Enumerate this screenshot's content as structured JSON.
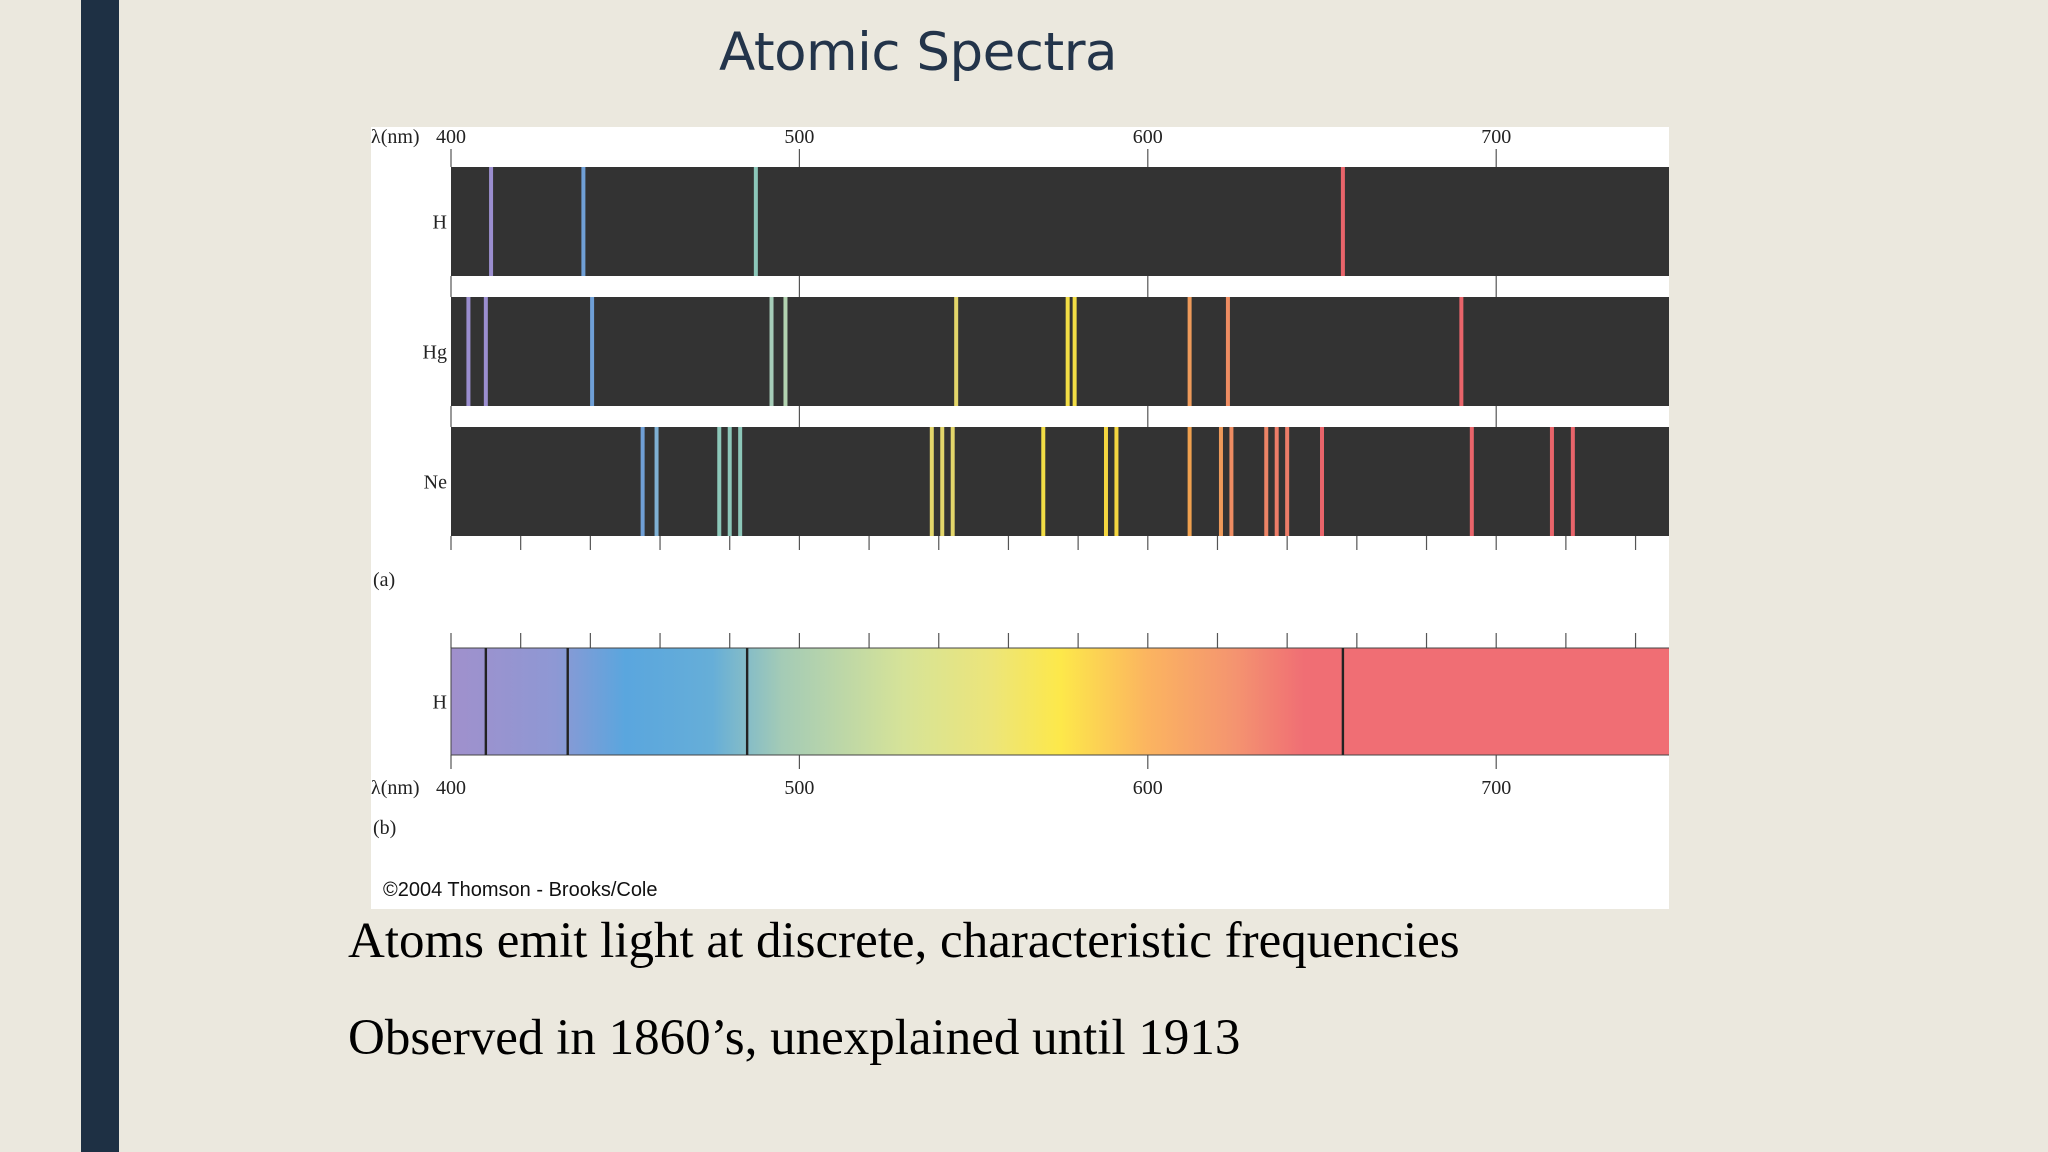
{
  "slide": {
    "title": "Atomic Spectra",
    "bullets": [
      "Atoms emit light at discrete, characteristic frequencies",
      "Observed in 1860’s, unexplained until 1913"
    ]
  },
  "figure": {
    "axis_label": "λ(nm)",
    "range_nm": [
      400,
      750
    ],
    "major_ticks": [
      {
        "value": 400,
        "label": "400"
      },
      {
        "value": 500,
        "label": "500"
      },
      {
        "value": 600,
        "label": "600"
      },
      {
        "value": 700,
        "label": "700"
      }
    ],
    "panel_a_label": "(a)",
    "panel_b_label": "(b)",
    "credit": "©2004 Thomson - Brooks/Cole",
    "emission_spectra": [
      {
        "element": "H",
        "lines": [
          {
            "nm": 411.5,
            "color": "#9b8ecf"
          },
          {
            "nm": 438,
            "color": "#6f9fd6"
          },
          {
            "nm": 487.5,
            "color": "#8cc7b9"
          },
          {
            "nm": 656,
            "color": "#e8646a"
          }
        ]
      },
      {
        "element": "Hg",
        "lines": [
          {
            "nm": 405,
            "color": "#9b8ecf"
          },
          {
            "nm": 410,
            "color": "#9b8ecf"
          },
          {
            "nm": 440.5,
            "color": "#6f9fd6"
          },
          {
            "nm": 492,
            "color": "#a6cdb8"
          },
          {
            "nm": 496,
            "color": "#b2d2b0"
          },
          {
            "nm": 545,
            "color": "#e3d66a"
          },
          {
            "nm": 577,
            "color": "#f2dd45"
          },
          {
            "nm": 579,
            "color": "#f2dd45"
          },
          {
            "nm": 612,
            "color": "#ee9a5a"
          },
          {
            "nm": 623,
            "color": "#ee8c62"
          },
          {
            "nm": 690,
            "color": "#e8646a"
          }
        ]
      },
      {
        "element": "Ne",
        "lines": [
          {
            "nm": 455,
            "color": "#6f9fd6"
          },
          {
            "nm": 459,
            "color": "#7eb0d4"
          },
          {
            "nm": 477,
            "color": "#8cc7b9"
          },
          {
            "nm": 480,
            "color": "#8cc7b9"
          },
          {
            "nm": 483,
            "color": "#8cc7b9"
          },
          {
            "nm": 538,
            "color": "#e3d66a"
          },
          {
            "nm": 541,
            "color": "#e3d66a"
          },
          {
            "nm": 544,
            "color": "#e3d66a"
          },
          {
            "nm": 570,
            "color": "#f2dd45"
          },
          {
            "nm": 588,
            "color": "#f4d640"
          },
          {
            "nm": 591,
            "color": "#f4d640"
          },
          {
            "nm": 612,
            "color": "#f0a04e"
          },
          {
            "nm": 621,
            "color": "#ee9a5a"
          },
          {
            "nm": 624,
            "color": "#ee8c62"
          },
          {
            "nm": 634,
            "color": "#ec8466"
          },
          {
            "nm": 637,
            "color": "#ec7c68"
          },
          {
            "nm": 640,
            "color": "#ec7c68"
          },
          {
            "nm": 650,
            "color": "#e8646a"
          },
          {
            "nm": 693,
            "color": "#e8646a"
          },
          {
            "nm": 716,
            "color": "#e8646a"
          },
          {
            "nm": 722,
            "color": "#e8646a"
          }
        ]
      }
    ],
    "absorption_spectrum": {
      "element": "H",
      "lines_nm": [
        410,
        433.5,
        485,
        656
      ]
    },
    "colors": {
      "band": "#333333",
      "spectrum_stops": [
        {
          "nm": 400,
          "color": "#a090cc"
        },
        {
          "nm": 430,
          "color": "#8e98d4"
        },
        {
          "nm": 450,
          "color": "#5aa6de"
        },
        {
          "nm": 475,
          "color": "#66aed8"
        },
        {
          "nm": 495,
          "color": "#a4cbb6"
        },
        {
          "nm": 530,
          "color": "#d6e398"
        },
        {
          "nm": 555,
          "color": "#ece57a"
        },
        {
          "nm": 575,
          "color": "#fde84a"
        },
        {
          "nm": 600,
          "color": "#fbb460"
        },
        {
          "nm": 625,
          "color": "#f49470"
        },
        {
          "nm": 645,
          "color": "#f06e74"
        },
        {
          "nm": 750,
          "color": "#f06e74"
        }
      ]
    }
  }
}
